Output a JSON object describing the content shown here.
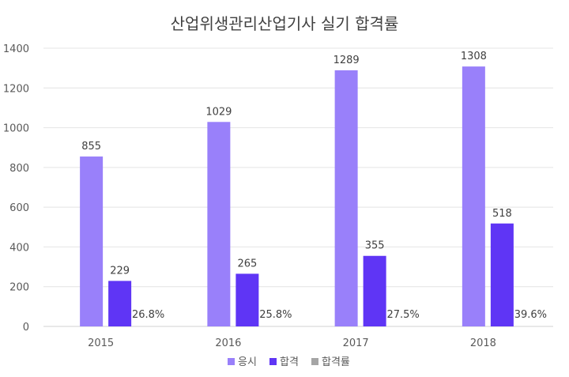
{
  "chart_data": {
    "type": "bar",
    "title": "산업위생관리산업기사 실기 합격률",
    "categories": [
      "2015",
      "2016",
      "2017",
      "2018"
    ],
    "series": [
      {
        "name": "응시",
        "values": [
          855,
          1029,
          1289,
          1308
        ],
        "labels": [
          "855",
          "1029",
          "1289",
          "1308"
        ],
        "color": "#9980FA"
      },
      {
        "name": "합격",
        "values": [
          229,
          265,
          355,
          518
        ],
        "labels": [
          "229",
          "265",
          "355",
          "518"
        ],
        "color": "#5F35F5"
      },
      {
        "name": "합격률",
        "values": [
          26.8,
          25.8,
          27.5,
          39.6
        ],
        "labels": [
          "26.8%",
          "25.8%",
          "27.5%",
          "39.6%"
        ],
        "color": "#A5A5A5"
      }
    ],
    "ylim": [
      0,
      1400
    ],
    "yticks": [
      "0",
      "200",
      "400",
      "600",
      "800",
      "1000",
      "1200",
      "1400"
    ],
    "grid": true,
    "legend": "bottom"
  }
}
